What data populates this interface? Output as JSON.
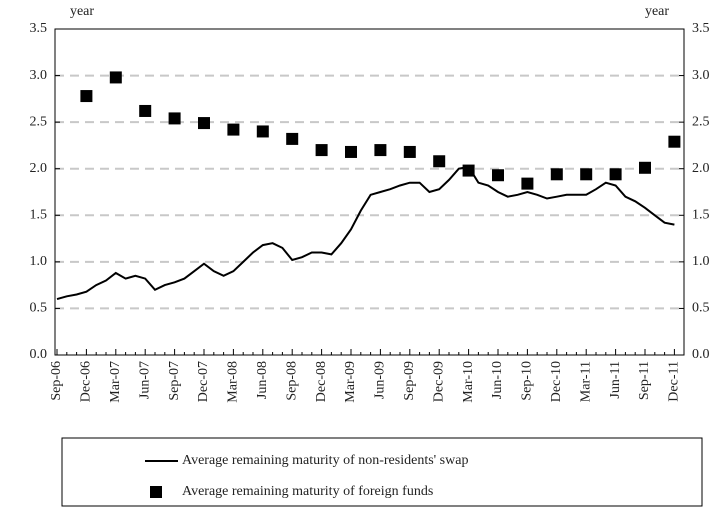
{
  "chart_data": {
    "type": "line",
    "y_label": "year",
    "y2_label": "year",
    "categories": [
      "Sep-06",
      null,
      null,
      "Dec-06",
      null,
      null,
      "Mar-07",
      null,
      null,
      "Jun-07",
      null,
      null,
      "Sep-07",
      null,
      null,
      "Dec-07",
      null,
      null,
      "Mar-08",
      null,
      null,
      "Jun-08",
      null,
      null,
      "Sep-08",
      null,
      null,
      "Dec-08",
      null,
      null,
      "Mar-09",
      null,
      null,
      "Jun-09",
      null,
      null,
      "Sep-09",
      null,
      null,
      "Dec-09",
      null,
      null,
      "Mar-10",
      null,
      null,
      "Jun-10",
      null,
      null,
      "Sep-10",
      null,
      null,
      "Dec-10",
      null,
      null,
      "Mar-11",
      null,
      null,
      "Jun-11",
      null,
      null,
      "Sep-11",
      null,
      null,
      "Dec-11"
    ],
    "series": [
      {
        "name": "Average remaining maturity of non-residents' swap",
        "style": "line",
        "color": "#000000",
        "values": [
          0.6,
          0.63,
          0.65,
          0.68,
          0.75,
          0.8,
          0.88,
          0.82,
          0.85,
          0.82,
          0.7,
          0.75,
          0.78,
          0.82,
          0.9,
          0.98,
          0.9,
          0.85,
          0.9,
          1.0,
          1.1,
          1.18,
          1.2,
          1.15,
          1.02,
          1.05,
          1.1,
          1.1,
          1.08,
          1.2,
          1.35,
          1.55,
          1.72,
          1.75,
          1.78,
          1.82,
          1.85,
          1.85,
          1.75,
          1.78,
          1.88,
          2.0,
          2.02,
          1.85,
          1.82,
          1.75,
          1.7,
          1.72,
          1.75,
          1.72,
          1.68,
          1.7,
          1.72,
          1.72,
          1.72,
          1.78,
          1.85,
          1.82,
          1.7,
          1.65,
          1.58,
          1.5,
          1.42,
          1.4
        ]
      },
      {
        "name": "Average remaining maturity of foreign funds",
        "style": "square",
        "color": "#000000",
        "values": [
          null,
          null,
          null,
          2.78,
          null,
          null,
          2.98,
          null,
          null,
          2.62,
          null,
          null,
          2.54,
          null,
          null,
          2.49,
          null,
          null,
          2.42,
          null,
          null,
          2.4,
          null,
          null,
          2.32,
          null,
          null,
          2.2,
          null,
          null,
          2.18,
          null,
          null,
          2.2,
          null,
          null,
          2.18,
          null,
          null,
          2.08,
          null,
          null,
          1.98,
          null,
          null,
          1.93,
          null,
          null,
          1.84,
          null,
          null,
          1.94,
          null,
          null,
          1.94,
          null,
          null,
          1.94,
          null,
          null,
          2.01,
          null,
          null,
          2.29
        ]
      }
    ],
    "ylim": [
      0,
      3.5
    ],
    "yticks": [
      {
        "value": 0,
        "label": "0.0"
      },
      0.5,
      {
        "value": 1,
        "label": "1.0"
      },
      1.5,
      {
        "value": 2,
        "label": "2.0"
      },
      2.5,
      {
        "value": 3,
        "label": "3.0"
      },
      3.5
    ],
    "y2lim": [
      0,
      3.5
    ],
    "y2ticks": [
      {
        "value": 0,
        "label": "0.0"
      },
      0.5,
      {
        "value": 1,
        "label": "1.0"
      },
      1.5,
      {
        "value": 2,
        "label": "2.0"
      },
      2.5,
      {
        "value": 3,
        "label": "3.0"
      },
      3.5
    ],
    "grid": true,
    "legend": "bottom"
  }
}
